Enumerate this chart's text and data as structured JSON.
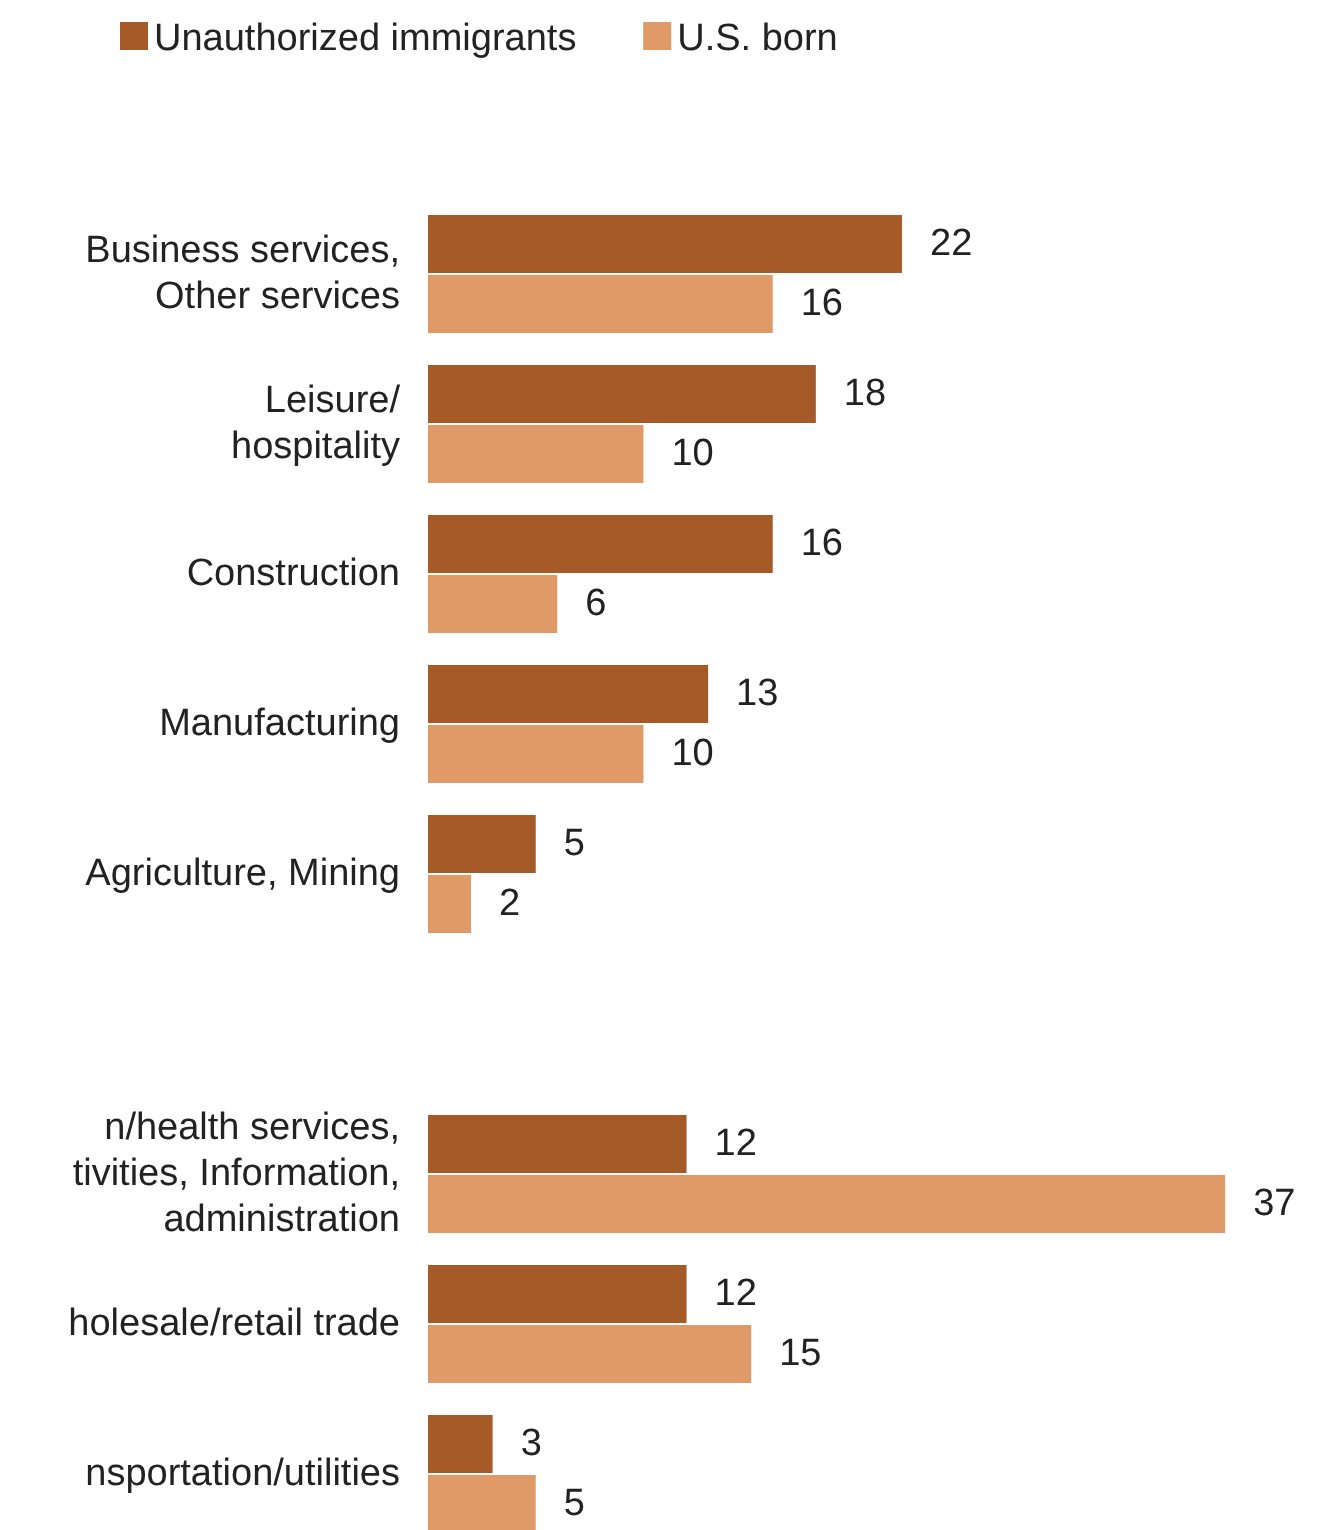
{
  "chart_data": {
    "type": "bar",
    "orientation": "horizontal",
    "categories": [
      "Business services,\nOther services",
      "Leisure/\nhospitality",
      "Construction",
      "Manufacturing",
      "Agriculture, Mining",
      null,
      "n/health services,\ntivities, Information,\nadministration",
      "holesale/retail trade",
      "nsportation/utilities"
    ],
    "series": [
      {
        "name": "Unauthorized immigrants",
        "color": "#a65a28",
        "values": [
          22,
          18,
          16,
          13,
          5,
          null,
          12,
          12,
          3
        ]
      },
      {
        "name": "U.S. born",
        "color": "#e09a68",
        "values": [
          16,
          10,
          6,
          10,
          2,
          null,
          37,
          15,
          5
        ]
      }
    ],
    "data_labels": true,
    "legend": "top"
  }
}
